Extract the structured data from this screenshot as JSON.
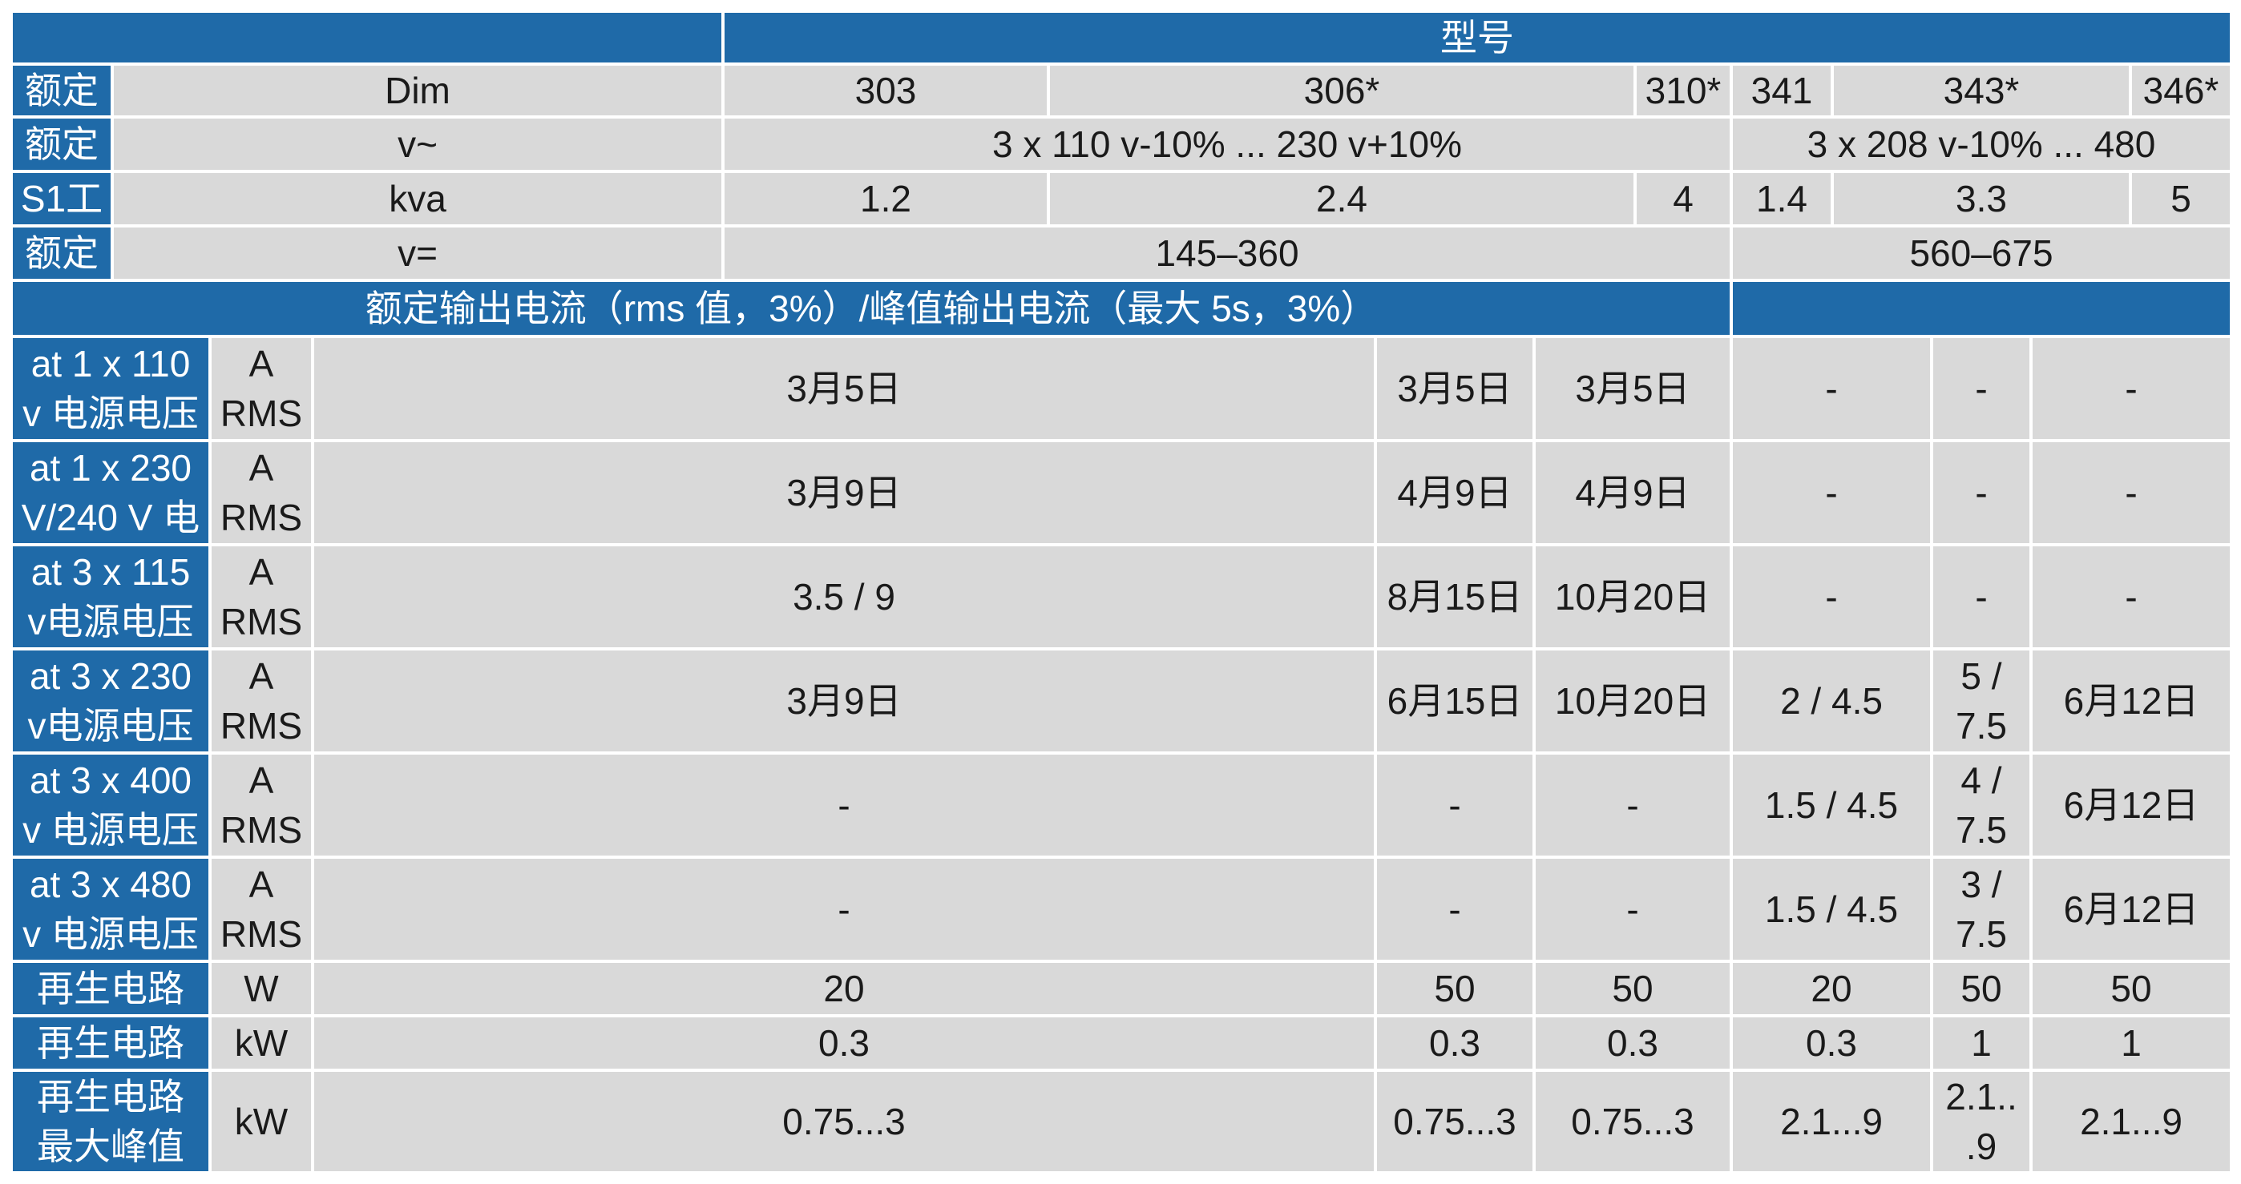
{
  "colors": {
    "header_blue": "#1f6aa8",
    "cell_grey": "#d9d9d9",
    "text_dark": "#1a1a1a",
    "text_light": "#ffffff"
  },
  "table": {
    "model_header": "型号",
    "top_rows": [
      {
        "label": "额定",
        "unit": "Dim",
        "cells": [
          "303",
          "306*",
          "310*",
          "341",
          "343*",
          "346*"
        ]
      },
      {
        "label": "额定",
        "unit": "v~",
        "cells": [
          "3 x 110 v-10% ... 230 v+10%",
          "3 x 208 v-10% ... 480"
        ]
      },
      {
        "label": "S1工",
        "unit": "kva",
        "cells": [
          "1.2",
          "2.4",
          "4",
          "1.4",
          "3.3",
          "5"
        ]
      },
      {
        "label": "额定",
        "unit": "v=",
        "cells": [
          "145–360",
          "560–675"
        ]
      }
    ],
    "section_header": "额定输出电流（rms 值，3%）/峰值输出电流（最大 5s，3%）",
    "current_rows": [
      {
        "label": "at  1 x 110\nv 电源电压",
        "unit": "A\nRMS",
        "cells": [
          "3月5日",
          "3月5日",
          "3月5日",
          "-",
          "-",
          "-"
        ]
      },
      {
        "label": "at 1 x 230\nV/240 V 电",
        "unit": "A\nRMS",
        "cells": [
          "3月9日",
          "4月9日",
          "4月9日",
          "-",
          "-",
          "-"
        ]
      },
      {
        "label": "at 3 x 115\nv电源电压",
        "unit": "A\nRMS",
        "cells": [
          "3.5 / 9",
          "8月15日",
          "10月20日",
          "-",
          "-",
          "-"
        ]
      },
      {
        "label": "at 3 x 230\nv电源电压",
        "unit": "A\nRMS",
        "cells": [
          "3月9日",
          "6月15日",
          "10月20日",
          "2 / 4.5",
          "5 /\n7.5",
          "6月12日"
        ]
      },
      {
        "label": "at 3 x 400\nv 电源电压",
        "unit": "A\nRMS",
        "cells": [
          "-",
          "-",
          "-",
          "1.5 / 4.5",
          "4 /\n7.5",
          "6月12日"
        ]
      },
      {
        "label": "at 3 x 480\nv 电源电压",
        "unit": "A\nRMS",
        "cells": [
          "-",
          "-",
          "-",
          "1.5 / 4.5",
          "3 /\n7.5",
          "6月12日"
        ]
      }
    ],
    "regen_rows": [
      {
        "label": "再生电路",
        "unit": "W",
        "cells": [
          "20",
          "50",
          "50",
          "20",
          "50",
          "50"
        ]
      },
      {
        "label": "再生电路",
        "unit": "kW",
        "cells": [
          "0.3",
          "0.3",
          "0.3",
          "0.3",
          "1",
          "1"
        ]
      },
      {
        "label": "再生电路\n最大峰值",
        "unit": "kW",
        "cells": [
          "0.75...3",
          "0.75...3",
          "0.75...3",
          "2.1...9",
          "2.1..\n.9",
          "2.1...9"
        ]
      }
    ]
  }
}
